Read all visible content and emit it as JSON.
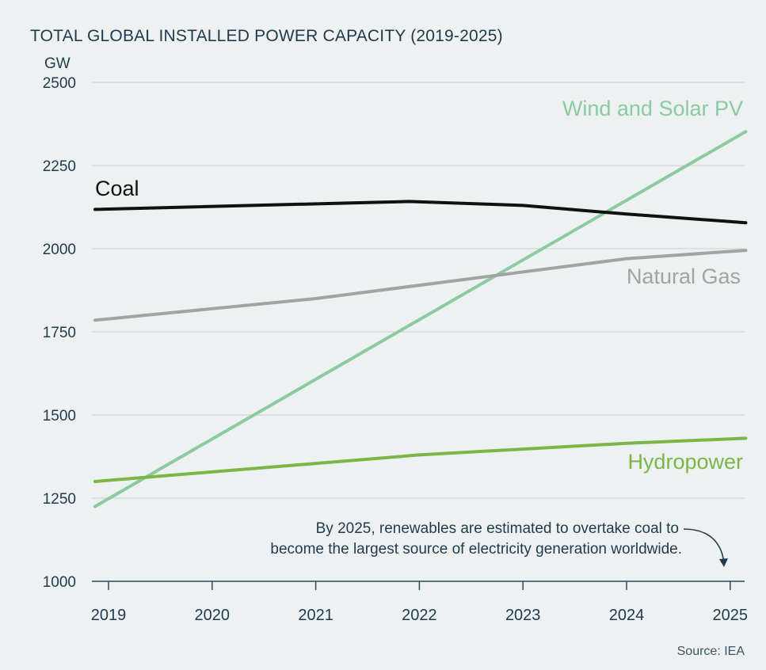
{
  "chart_data": {
    "type": "line",
    "title": "TOTAL GLOBAL INSTALLED POWER CAPACITY (2019-2025)",
    "ylabel": "GW",
    "xlabel": "",
    "ylim": [
      1000,
      2500
    ],
    "yticks": [
      1000,
      1250,
      1500,
      1750,
      2000,
      2250,
      2500
    ],
    "categories": [
      "2019",
      "2020",
      "2021",
      "2022",
      "2023",
      "2024",
      "2025"
    ],
    "xrange": [
      2018.87,
      2025.15
    ],
    "series": [
      {
        "name": "Wind and Solar PV",
        "color": "#8ccaa2",
        "points": [
          [
            2018.87,
            1225
          ],
          [
            2025.15,
            2352
          ]
        ]
      },
      {
        "name": "Coal",
        "color": "#111111",
        "points": [
          [
            2018.87,
            2118
          ],
          [
            2021.9,
            2142
          ],
          [
            2023,
            2130
          ],
          [
            2024,
            2104
          ],
          [
            2025.15,
            2078
          ]
        ]
      },
      {
        "name": "Natural Gas",
        "color": "#a3a3a3",
        "points": [
          [
            2018.87,
            1785
          ],
          [
            2021,
            1850
          ],
          [
            2024,
            1970
          ],
          [
            2025.15,
            1995
          ]
        ]
      },
      {
        "name": "Hydropower",
        "color": "#7ab648",
        "points": [
          [
            2018.87,
            1300
          ],
          [
            2022,
            1380
          ],
          [
            2024,
            1415
          ],
          [
            2025.15,
            1430
          ]
        ]
      }
    ],
    "annotation": {
      "line1": "By 2025, renewables are estimated to overtake coal to",
      "line2": "become the largest source of electricity generation worldwide."
    },
    "source": "Source: IEA"
  }
}
